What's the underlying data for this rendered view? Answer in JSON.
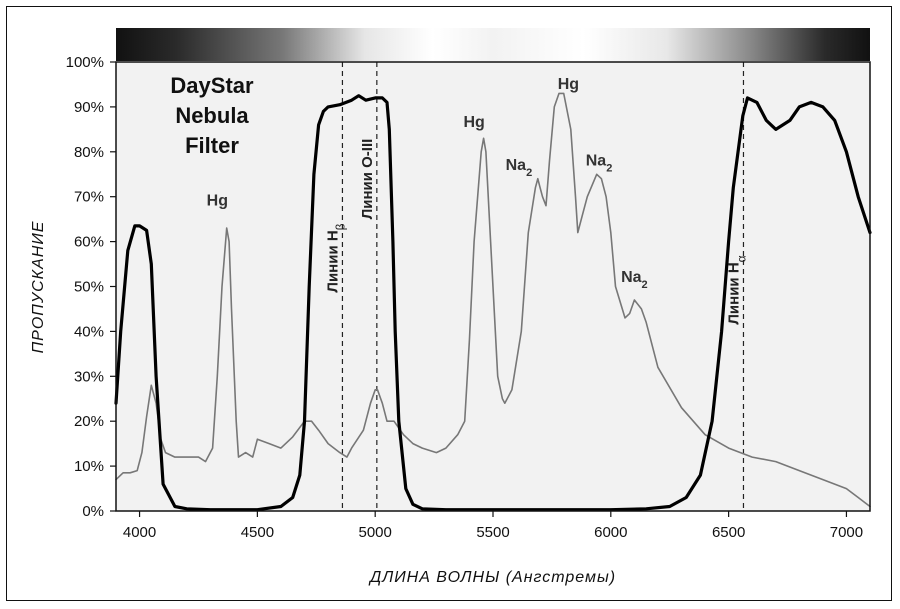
{
  "chart_data": {
    "type": "line",
    "title_lines": [
      "DayStar",
      "Nebula",
      "Filter"
    ],
    "xlabel": "ДЛИНА ВОЛНЫ (Ангстремы)",
    "ylabel": "ПРОПУСКАНИЕ",
    "xlim": [
      3900,
      7100
    ],
    "ylim": [
      0,
      100
    ],
    "x_ticks": [
      "4000",
      "4500",
      "5000",
      "5500",
      "6000",
      "6500",
      "7000"
    ],
    "y_ticks": [
      "0%",
      "10%",
      "20%",
      "30%",
      "40%",
      "50%",
      "60%",
      "70%",
      "80%",
      "90%",
      "100%"
    ],
    "series": [
      {
        "role": "filter-transmission",
        "color": "#000000",
        "x": [
          3900,
          3920,
          3950,
          3980,
          4000,
          4030,
          4050,
          4070,
          4100,
          4150,
          4200,
          4300,
          4400,
          4500,
          4600,
          4650,
          4680,
          4700,
          4720,
          4740,
          4760,
          4780,
          4800,
          4850,
          4900,
          4930,
          4960,
          5000,
          5030,
          5050,
          5060,
          5075,
          5085,
          5100,
          5130,
          5160,
          5200,
          5300,
          5500,
          5800,
          6000,
          6150,
          6250,
          6320,
          6380,
          6430,
          6470,
          6500,
          6520,
          6560,
          6580,
          6620,
          6660,
          6700,
          6760,
          6800,
          6850,
          6900,
          6950,
          7000,
          7050,
          7100
        ],
        "y": [
          24,
          40,
          58,
          63.5,
          63.5,
          62.5,
          55,
          30,
          6,
          1,
          0.5,
          0.3,
          0.3,
          0.3,
          1,
          3,
          8,
          20,
          50,
          75,
          86,
          89,
          90,
          90.5,
          91.5,
          92.5,
          91.5,
          92,
          92,
          91,
          85,
          60,
          40,
          20,
          5,
          1.5,
          0.5,
          0.3,
          0.3,
          0.3,
          0.3,
          0.5,
          1,
          3,
          8,
          20,
          40,
          60,
          72,
          88,
          92,
          91,
          87,
          85,
          87,
          90,
          91,
          90,
          87,
          80,
          70,
          62
        ]
      },
      {
        "role": "emission-spectrum",
        "color": "#777777",
        "x": [
          3900,
          3930,
          3960,
          3990,
          4010,
          4030,
          4050,
          4070,
          4090,
          4110,
          4150,
          4200,
          4250,
          4280,
          4310,
          4330,
          4350,
          4370,
          4380,
          4390,
          4410,
          4420,
          4450,
          4480,
          4500,
          4550,
          4600,
          4650,
          4700,
          4730,
          4760,
          4800,
          4850,
          4880,
          4900,
          4950,
          4980,
          5000,
          5010,
          5030,
          5050,
          5080,
          5120,
          5160,
          5200,
          5260,
          5300,
          5350,
          5380,
          5400,
          5420,
          5450,
          5460,
          5470,
          5490,
          5520,
          5540,
          5550,
          5580,
          5620,
          5650,
          5680,
          5690,
          5700,
          5710,
          5725,
          5740,
          5760,
          5780,
          5800,
          5830,
          5850,
          5860,
          5880,
          5900,
          5940,
          5960,
          5980,
          6000,
          6020,
          6060,
          6080,
          6100,
          6130,
          6150,
          6200,
          6300,
          6400,
          6500,
          6600,
          6700,
          6800,
          6900,
          7000,
          7050,
          7100
        ],
        "y": [
          7,
          8.5,
          8.5,
          9,
          13,
          21,
          28,
          24,
          16,
          13,
          12,
          12,
          12,
          11,
          14,
          30,
          50,
          63,
          60,
          45,
          20,
          12,
          13,
          12,
          16,
          15,
          14,
          16.5,
          20,
          20,
          18,
          15,
          13,
          12,
          14,
          18,
          24,
          27,
          27,
          24,
          20,
          20,
          17,
          15,
          14,
          13,
          14,
          17,
          20,
          38,
          60,
          80,
          83,
          80,
          60,
          30,
          25,
          24,
          27,
          40,
          62,
          72,
          74,
          72,
          70,
          68,
          78,
          90,
          93,
          93,
          85,
          70,
          62,
          66,
          70,
          75,
          74,
          70,
          62,
          50,
          43,
          44,
          47,
          45,
          42,
          32,
          23,
          17,
          14,
          12,
          11,
          9,
          7,
          5,
          3,
          1
        ]
      }
    ],
    "peak_labels": [
      {
        "text": "Hg",
        "x": 4330,
        "y": 68
      },
      {
        "text": "Hg",
        "x": 5420,
        "y": 85.5
      },
      {
        "text": "Na",
        "sub": "2",
        "x": 5610,
        "y": 76
      },
      {
        "text": "Hg",
        "x": 5820,
        "y": 94
      },
      {
        "text": "Na",
        "sub": "2",
        "x": 5950,
        "y": 77
      },
      {
        "text": "Na",
        "sub": "2",
        "x": 6100,
        "y": 51
      }
    ],
    "reference_lines": [
      {
        "label": "Линии H",
        "sub": "β",
        "x": 4861
      },
      {
        "label": "Линии O-III",
        "sub": "",
        "x": 5007
      },
      {
        "label": "Линии H",
        "sub": "α",
        "x": 6563
      }
    ]
  }
}
